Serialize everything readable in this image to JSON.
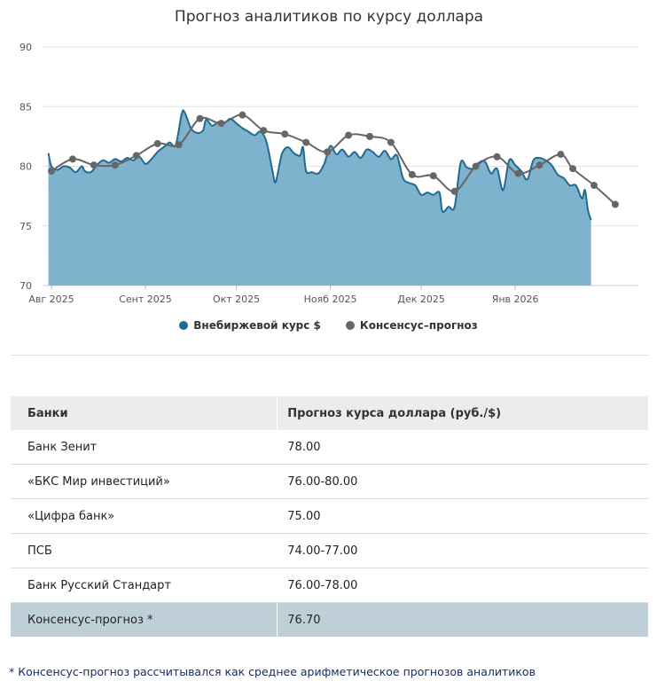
{
  "colors": {
    "area_fill": "#7fb2cc",
    "area_line": "#1e6a92",
    "consensus": "#666666",
    "grid": "#e3e3e3",
    "header_bg": "#ececec",
    "consensus_row": "#bfcfd8"
  },
  "chart_data": {
    "type": "area",
    "title": "Прогноз аналитиков по курсу доллара",
    "y_ticks": [
      "70",
      "75",
      "80",
      "85",
      "90"
    ],
    "ylim": [
      70,
      90
    ],
    "x_ticks": [
      {
        "label": "Авг 2025",
        "day": 0
      },
      {
        "label": "Сент 2025",
        "day": 31
      },
      {
        "label": "Окт 2025",
        "day": 61
      },
      {
        "label": "Нояб 2025",
        "day": 92
      },
      {
        "label": "Дек 2025",
        "day": 122
      },
      {
        "label": "Янв 2026",
        "day": 153
      }
    ],
    "xlim": [
      -1,
      180
    ],
    "series": [
      {
        "name": "Внебиржевой курс $",
        "type": "area",
        "points": [
          [
            -1,
            81.1
          ],
          [
            0,
            80.0
          ],
          [
            2,
            79.7
          ],
          [
            4,
            80.0
          ],
          [
            6,
            79.9
          ],
          [
            8,
            79.5
          ],
          [
            10,
            80.0
          ],
          [
            11,
            79.6
          ],
          [
            13,
            79.5
          ],
          [
            15,
            80.1
          ],
          [
            17,
            80.5
          ],
          [
            19,
            80.3
          ],
          [
            21,
            80.6
          ],
          [
            23,
            80.4
          ],
          [
            25,
            80.7
          ],
          [
            27,
            80.5
          ],
          [
            29,
            80.8
          ],
          [
            31,
            80.2
          ],
          [
            33,
            80.6
          ],
          [
            35,
            81.2
          ],
          [
            37,
            81.6
          ],
          [
            39,
            82.0
          ],
          [
            41,
            81.8
          ],
          [
            43,
            84.4
          ],
          [
            44,
            84.5
          ],
          [
            46,
            83.2
          ],
          [
            48,
            82.8
          ],
          [
            50,
            83.0
          ],
          [
            51,
            83.9
          ],
          [
            53,
            83.4
          ],
          [
            55,
            83.7
          ],
          [
            57,
            83.6
          ],
          [
            59,
            84.0
          ],
          [
            61,
            83.6
          ],
          [
            63,
            83.2
          ],
          [
            65,
            82.9
          ],
          [
            67,
            82.6
          ],
          [
            69,
            82.9
          ],
          [
            71,
            82.0
          ],
          [
            73,
            79.5
          ],
          [
            74,
            78.7
          ],
          [
            76,
            81.0
          ],
          [
            78,
            81.6
          ],
          [
            80,
            81.1
          ],
          [
            82,
            80.9
          ],
          [
            83,
            81.6
          ],
          [
            84,
            79.6
          ],
          [
            86,
            79.5
          ],
          [
            88,
            79.4
          ],
          [
            90,
            80.2
          ],
          [
            92,
            81.7
          ],
          [
            94,
            81.0
          ],
          [
            96,
            81.4
          ],
          [
            98,
            80.8
          ],
          [
            100,
            81.2
          ],
          [
            102,
            80.7
          ],
          [
            104,
            81.4
          ],
          [
            106,
            81.2
          ],
          [
            108,
            80.8
          ],
          [
            110,
            81.3
          ],
          [
            112,
            80.6
          ],
          [
            114,
            80.9
          ],
          [
            116,
            79.0
          ],
          [
            118,
            78.6
          ],
          [
            120,
            78.4
          ],
          [
            122,
            77.6
          ],
          [
            124,
            77.8
          ],
          [
            126,
            77.6
          ],
          [
            128,
            77.8
          ],
          [
            129,
            76.2
          ],
          [
            131,
            76.6
          ],
          [
            133,
            76.6
          ],
          [
            135,
            80.3
          ],
          [
            137,
            79.9
          ],
          [
            139,
            79.8
          ],
          [
            141,
            80.3
          ],
          [
            143,
            80.4
          ],
          [
            145,
            79.4
          ],
          [
            147,
            79.8
          ],
          [
            149,
            78.0
          ],
          [
            151,
            80.5
          ],
          [
            153,
            80.1
          ],
          [
            155,
            79.6
          ],
          [
            157,
            78.9
          ],
          [
            159,
            80.5
          ],
          [
            161,
            80.7
          ],
          [
            163,
            80.5
          ],
          [
            165,
            80.1
          ],
          [
            167,
            79.3
          ],
          [
            169,
            79.0
          ],
          [
            171,
            78.4
          ],
          [
            173,
            78.4
          ],
          [
            175,
            77.3
          ],
          [
            176,
            78.0
          ],
          [
            177,
            76.3
          ],
          [
            178,
            75.5
          ]
        ]
      },
      {
        "name": "Консенсус–прогноз",
        "type": "line",
        "points": [
          [
            0,
            79.6
          ],
          [
            7,
            80.6
          ],
          [
            14,
            80.1
          ],
          [
            21,
            80.1
          ],
          [
            28,
            80.9
          ],
          [
            35,
            81.9
          ],
          [
            42,
            81.8
          ],
          [
            49,
            84.0
          ],
          [
            56,
            83.6
          ],
          [
            63,
            84.3
          ],
          [
            70,
            83.0
          ],
          [
            77,
            82.7
          ],
          [
            84,
            82.0
          ],
          [
            91,
            81.2
          ],
          [
            98,
            82.6
          ],
          [
            105,
            82.5
          ],
          [
            112,
            82.0
          ],
          [
            119,
            79.3
          ],
          [
            126,
            79.2
          ],
          [
            133,
            77.9
          ],
          [
            140,
            80.0
          ],
          [
            147,
            80.8
          ],
          [
            154,
            79.4
          ],
          [
            161,
            80.1
          ],
          [
            168,
            81.0
          ],
          [
            172,
            79.8
          ],
          [
            179,
            78.4
          ],
          [
            186,
            76.8
          ]
        ]
      }
    ]
  },
  "legend": {
    "spot": "Внебиржевой курс $",
    "consensus": "Консенсус–прогноз"
  },
  "table": {
    "headers": [
      "Банки",
      "Прогноз курса доллара (руб./$)"
    ],
    "rows": [
      {
        "bank": "Банк Зенит",
        "forecast": "78.00"
      },
      {
        "bank": "«БКС Мир инвестиций»",
        "forecast": "76.00-80.00"
      },
      {
        "bank": "«Цифра банк»",
        "forecast": "75.00"
      },
      {
        "bank": "ПСБ",
        "forecast": "74.00-77.00"
      },
      {
        "bank": "Банк Русский Стандарт",
        "forecast": "76.00-78.00"
      },
      {
        "bank": "Консенсус-прогноз *",
        "forecast": "76.70"
      }
    ]
  },
  "footnote": "* Консенсус-прогноз рассчитывался как среднее арифметическое прогнозов аналитиков"
}
